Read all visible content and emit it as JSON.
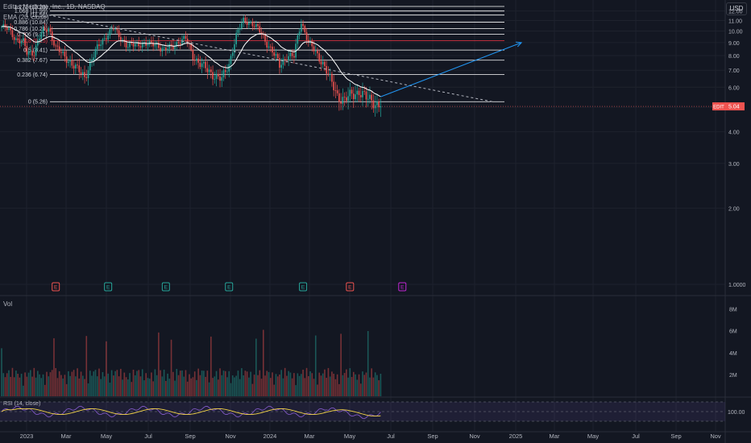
{
  "header": {
    "symbol_line": "Editas Medicine, Inc., 1D, NASDAQ",
    "ema_label": "EMA (20, close)",
    "currency": "USD"
  },
  "colors": {
    "background": "#131722",
    "grid": "#1e222d",
    "up": "#26a69a",
    "down": "#ef5350",
    "ema": "#ffffff",
    "rsi": "#7e57c2",
    "rsi_ma": "#f5d547",
    "projection": "#2196f3",
    "fib": "#ffffff",
    "fib_highlight": "#f23645"
  },
  "chart_data": {
    "type": "candlestick",
    "x_axis": {
      "labels": [
        "2023",
        "Mar",
        "May",
        "Jul",
        "Sep",
        "Nov",
        "2024",
        "Mar",
        "May",
        "Jul",
        "Sep",
        "Nov",
        "2025",
        "Mar",
        "May",
        "Jul",
        "Sep",
        "Nov"
      ]
    },
    "price_axis": {
      "ticks": [
        "12.00",
        "11.00",
        "10.00",
        "9.00",
        "8.00",
        "7.00",
        "6.00",
        "5.00",
        "4.00",
        "3.00",
        "2.00",
        "1.0000"
      ],
      "tick_values": [
        12,
        11,
        10,
        9,
        8,
        7,
        6,
        5,
        4,
        3,
        2,
        1
      ],
      "ylim": [
        0.95,
        12.5
      ]
    },
    "last_price": {
      "symbol": "EDIT",
      "value": "5.04"
    },
    "fib_levels": [
      {
        "label": "1.068 (11.99)",
        "value": 11.99
      },
      {
        "label": "1 (11.56)",
        "value": 11.56
      },
      {
        "label": "0.886 (10.84)",
        "value": 10.84
      },
      {
        "label": "0.786 (10.21)",
        "value": 10.21
      },
      {
        "label": "0.706 (9.71)",
        "value": 9.71
      },
      {
        "label": "0.618 (9.15)",
        "value": 9.15,
        "highlight": true
      },
      {
        "label": "0.5 (8.41)",
        "value": 8.41
      },
      {
        "label": "0.382 (7.67)",
        "value": 7.67
      },
      {
        "label": "0.236 (6.74)",
        "value": 6.74
      },
      {
        "label": "0 (5.26)",
        "value": 5.26
      }
    ],
    "fib_top_level": {
      "label": "1.272 (13.28)",
      "value": 13.28
    },
    "price_anchors": [
      [
        0,
        10.4
      ],
      [
        4,
        10.1
      ],
      [
        8,
        9.3
      ],
      [
        12,
        9.0
      ],
      [
        14,
        8.2
      ],
      [
        18,
        8.3
      ],
      [
        22,
        9.8
      ],
      [
        26,
        10.3
      ],
      [
        30,
        8.6
      ],
      [
        34,
        8.0
      ],
      [
        38,
        7.6
      ],
      [
        42,
        7.0
      ],
      [
        46,
        6.6
      ],
      [
        50,
        7.7
      ],
      [
        54,
        8.8
      ],
      [
        58,
        9.6
      ],
      [
        62,
        10.2
      ],
      [
        66,
        9.4
      ],
      [
        70,
        8.7
      ],
      [
        74,
        8.8
      ],
      [
        78,
        9.0
      ],
      [
        82,
        8.8
      ],
      [
        86,
        8.9
      ],
      [
        90,
        8.4
      ],
      [
        94,
        8.6
      ],
      [
        98,
        9.1
      ],
      [
        102,
        9.3
      ],
      [
        106,
        8.0
      ],
      [
        110,
        7.4
      ],
      [
        114,
        7.0
      ],
      [
        118,
        6.7
      ],
      [
        122,
        6.4
      ],
      [
        126,
        7.4
      ],
      [
        130,
        9.6
      ],
      [
        134,
        11.0
      ],
      [
        138,
        10.8
      ],
      [
        142,
        10.2
      ],
      [
        146,
        9.2
      ],
      [
        150,
        8.3
      ],
      [
        154,
        7.3
      ],
      [
        158,
        8.0
      ],
      [
        162,
        7.9
      ],
      [
        166,
        10.9
      ],
      [
        170,
        9.0
      ],
      [
        174,
        8.2
      ],
      [
        178,
        7.5
      ],
      [
        182,
        6.4
      ],
      [
        186,
        5.6
      ],
      [
        190,
        5.3
      ],
      [
        194,
        5.6
      ],
      [
        198,
        5.8
      ],
      [
        202,
        5.4
      ],
      [
        206,
        5.3
      ],
      [
        210,
        5.04
      ]
    ],
    "rsi": {
      "label": "RSI (14, close)",
      "axis_label": "100.00"
    },
    "volume": {
      "label": "Vol",
      "ticks": [
        "8M",
        "6M",
        "4M",
        "2M"
      ],
      "tick_values": [
        8,
        6,
        4,
        2
      ]
    },
    "events": [
      {
        "label": "E",
        "type": "down",
        "index": 30
      },
      {
        "label": "E",
        "type": "up",
        "index": 59
      },
      {
        "label": "E",
        "type": "up",
        "index": 91
      },
      {
        "label": "E",
        "type": "up",
        "index": 126
      },
      {
        "label": "E",
        "type": "up",
        "index": 167
      },
      {
        "label": "E",
        "type": "down",
        "index": 193
      },
      {
        "label": "E",
        "type": "future",
        "index": 222
      }
    ],
    "trendline": {
      "from": [
        26,
        11.56
      ],
      "to": [
        272,
        5.26
      ]
    },
    "projection": {
      "from": [
        210,
        5.5
      ],
      "to": [
        288,
        9.0
      ]
    }
  }
}
